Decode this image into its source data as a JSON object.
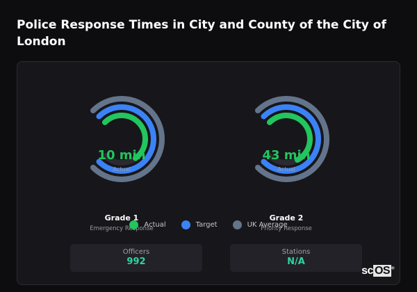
{
  "title": "Police Response Times in City and County of the City of London",
  "colors": {
    "actual": "#22c55e",
    "target": "#3b82f6",
    "uk_average": "#64748b",
    "track": "#2a2a30"
  },
  "gauges": [
    {
      "value_label": "10 min",
      "sub_label": "Actual",
      "name": "Grade 1",
      "description": "Emergency Response",
      "fill": {
        "actual": 0.7,
        "target": 1.0,
        "uk_average": 1.0
      }
    },
    {
      "value_label": "43 min",
      "sub_label": "Actual",
      "name": "Grade 2",
      "description": "Priority Response",
      "fill": {
        "actual": 0.73,
        "target": 1.0,
        "uk_average": 1.0
      }
    }
  ],
  "legend": [
    "Actual",
    "Target",
    "UK Average"
  ],
  "stats": [
    {
      "label": "Officers",
      "value": "992"
    },
    {
      "label": "Stations",
      "value": "N/A"
    }
  ],
  "logo": "scOS"
}
